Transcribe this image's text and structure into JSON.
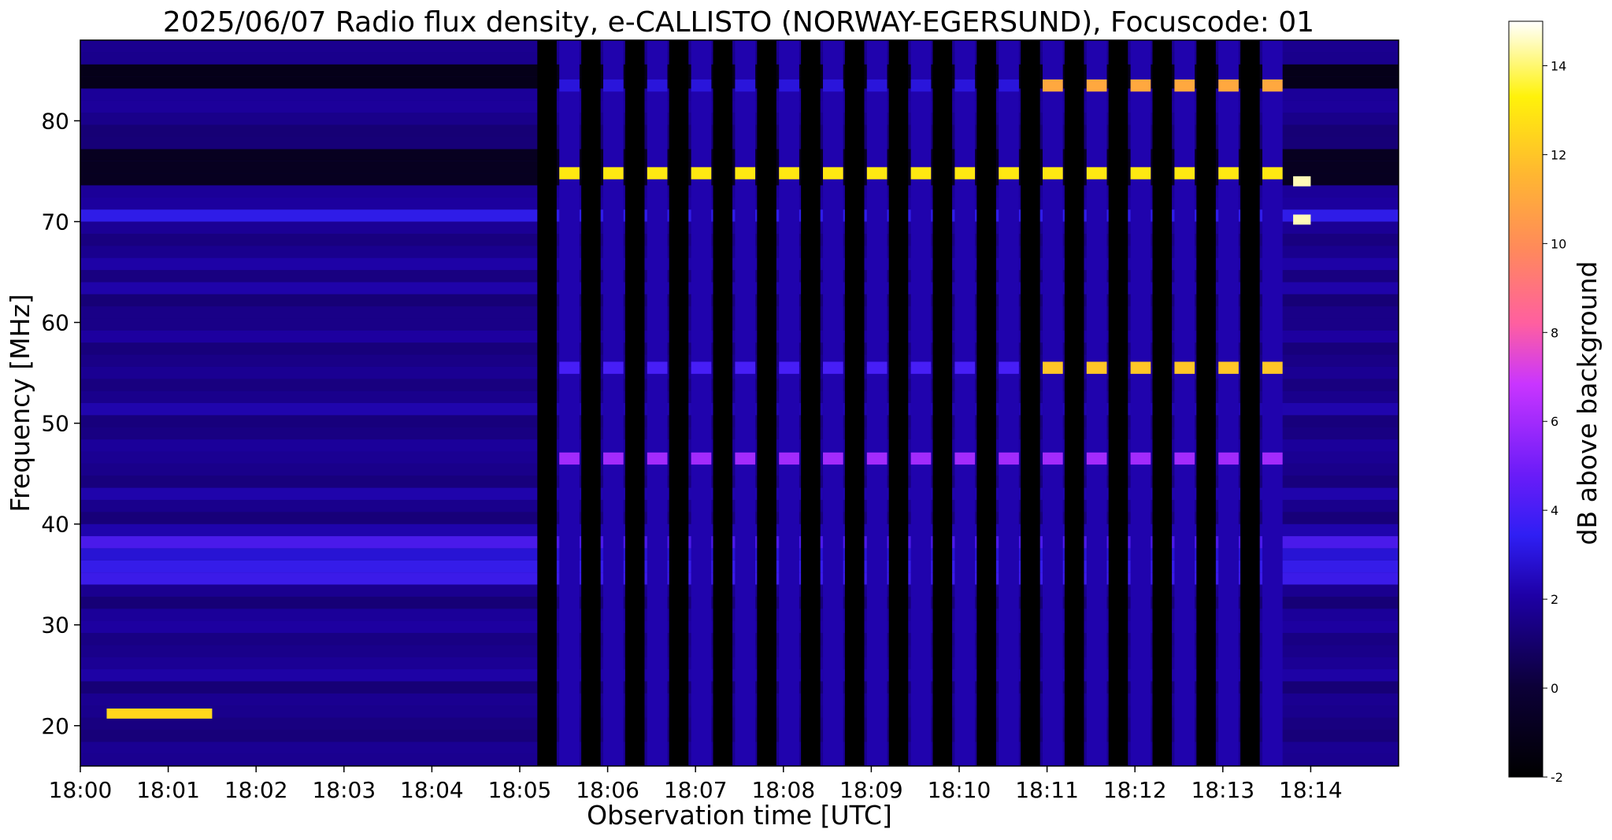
{
  "chart_data": {
    "type": "heatmap",
    "title": "2025/06/07  Radio flux density, e-CALLISTO (NORWAY-EGERSUND), Focuscode: 01",
    "xlabel": "Observation time [UTC]",
    "ylabel": "Frequency [MHz]",
    "colorbar_label": "dB above background",
    "colormap": "gnuplot2",
    "x_ticks": [
      "18:00",
      "18:01",
      "18:02",
      "18:03",
      "18:04",
      "18:05",
      "18:06",
      "18:07",
      "18:08",
      "18:09",
      "18:10",
      "18:11",
      "18:12",
      "18:13",
      "18:14"
    ],
    "x_range_minutes": [
      0,
      15
    ],
    "y_ticks": [
      20,
      30,
      40,
      50,
      60,
      70,
      80
    ],
    "ylim": [
      16,
      88
    ],
    "colorbar_ticks": [
      -2,
      0,
      2,
      4,
      6,
      8,
      10,
      12,
      14
    ],
    "colorbar_range": [
      -2,
      15
    ],
    "features": {
      "pulse_train": {
        "first_pulse_minute": 5.2,
        "pulse_period_minutes": 0.5,
        "pulse_count": 17,
        "bright_bands_mhz": [
          74.8,
          55.5,
          83.5,
          46.5
        ]
      },
      "early_burst": {
        "freq_mhz": 21.2,
        "start_minute": 0.3,
        "end_minute": 1.5
      },
      "late_markers": {
        "minute": 13.8,
        "freqs_mhz": [
          70.2,
          74.0
        ]
      }
    }
  }
}
